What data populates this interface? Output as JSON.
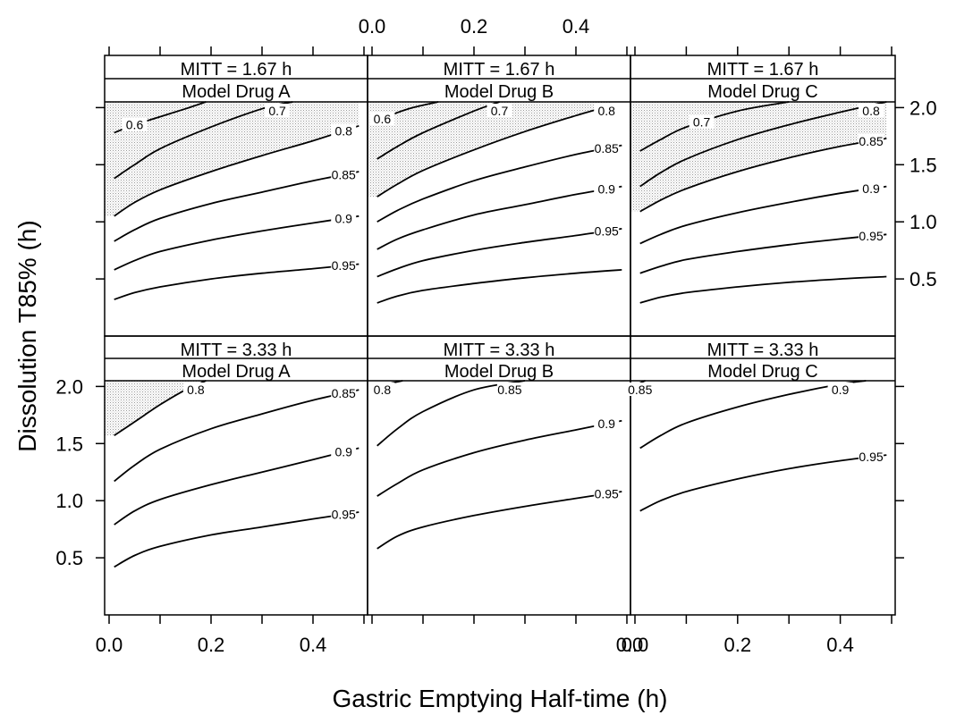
{
  "chart_data": {
    "type": "line",
    "subtype": "contour-trellis",
    "xlabel": "Gastric Emptying Half-time (h)",
    "ylabel": "Dissolution T85% (h)",
    "xlim": [
      0.0,
      0.5
    ],
    "ylim": [
      0.0,
      2.05
    ],
    "xticks": [
      "0.0",
      "0.2",
      "0.4"
    ],
    "yticks": [
      "0.5",
      "1.0",
      "1.5",
      "2.0"
    ],
    "shading": "stippled region where predicted fraction absorbed is below the highest contour shown in the top-left",
    "panels": [
      {
        "strip_top": "MITT = 1.67 h",
        "strip_bottom": "Model Drug A",
        "row": 0,
        "col": 0,
        "contours": [
          {
            "level": "0.6",
            "x": [
              0.01,
              0.05,
              0.1,
              0.15,
              0.19
            ],
            "y": [
              1.78,
              1.85,
              1.92,
              1.99,
              2.05
            ],
            "label_x": 0.05
          },
          {
            "level": "0.7",
            "x": [
              0.01,
              0.05,
              0.1,
              0.2,
              0.3,
              0.36
            ],
            "y": [
              1.38,
              1.5,
              1.64,
              1.83,
              1.99,
              2.05
            ],
            "label_x": 0.33
          },
          {
            "level": "0.8",
            "x": [
              0.01,
              0.05,
              0.1,
              0.2,
              0.3,
              0.4,
              0.49
            ],
            "y": [
              1.05,
              1.17,
              1.28,
              1.44,
              1.58,
              1.71,
              1.84
            ],
            "label_x": 0.46
          },
          {
            "level": "0.85",
            "x": [
              0.01,
              0.05,
              0.1,
              0.2,
              0.3,
              0.4,
              0.49
            ],
            "y": [
              0.83,
              0.93,
              1.03,
              1.16,
              1.26,
              1.36,
              1.44
            ],
            "label_x": 0.46
          },
          {
            "level": "0.9",
            "x": [
              0.01,
              0.05,
              0.1,
              0.2,
              0.3,
              0.4,
              0.49
            ],
            "y": [
              0.58,
              0.66,
              0.74,
              0.84,
              0.92,
              0.99,
              1.05
            ],
            "label_x": 0.46
          },
          {
            "level": "0.95",
            "x": [
              0.01,
              0.05,
              0.1,
              0.2,
              0.3,
              0.4,
              0.49
            ],
            "y": [
              0.32,
              0.38,
              0.43,
              0.5,
              0.55,
              0.59,
              0.63
            ],
            "label_x": 0.46
          }
        ]
      },
      {
        "strip_top": "MITT = 1.67 h",
        "strip_bottom": "Model Drug B",
        "row": 0,
        "col": 1,
        "contours": [
          {
            "level": "0.6",
            "x": [
              0.01,
              0.04,
              0.08,
              0.13
            ],
            "y": [
              1.88,
              1.94,
              2.0,
              2.05
            ],
            "label_x": 0.02
          },
          {
            "level": "0.7",
            "x": [
              0.01,
              0.05,
              0.1,
              0.2,
              0.25
            ],
            "y": [
              1.55,
              1.66,
              1.78,
              1.97,
              2.05
            ],
            "label_x": 0.25
          },
          {
            "level": "0.8",
            "x": [
              0.01,
              0.05,
              0.1,
              0.2,
              0.3,
              0.4,
              0.47
            ],
            "y": [
              1.22,
              1.33,
              1.45,
              1.63,
              1.79,
              1.93,
              2.02
            ],
            "label_x": 0.46
          },
          {
            "level": "0.85",
            "x": [
              0.01,
              0.05,
              0.1,
              0.2,
              0.3,
              0.4,
              0.49
            ],
            "y": [
              1.0,
              1.1,
              1.2,
              1.36,
              1.48,
              1.59,
              1.67
            ],
            "label_x": 0.46
          },
          {
            "level": "0.9",
            "x": [
              0.01,
              0.05,
              0.1,
              0.2,
              0.3,
              0.4,
              0.49
            ],
            "y": [
              0.76,
              0.85,
              0.93,
              1.06,
              1.15,
              1.24,
              1.31
            ],
            "label_x": 0.46
          },
          {
            "level": "0.95",
            "x": [
              0.01,
              0.05,
              0.1,
              0.2,
              0.3,
              0.4,
              0.49
            ],
            "y": [
              0.52,
              0.59,
              0.66,
              0.75,
              0.82,
              0.88,
              0.94
            ],
            "label_x": 0.46
          },
          {
            "level": "",
            "x": [
              0.01,
              0.05,
              0.1,
              0.2,
              0.3,
              0.4,
              0.49
            ],
            "y": [
              0.29,
              0.35,
              0.4,
              0.46,
              0.51,
              0.55,
              0.58
            ],
            "label_x": 0.46
          }
        ]
      },
      {
        "strip_top": "MITT = 1.67 h",
        "strip_bottom": "Model Drug C",
        "row": 0,
        "col": 2,
        "contours": [
          {
            "level": "0.7",
            "x": [
              0.01,
              0.05,
              0.1,
              0.2,
              0.3
            ],
            "y": [
              1.62,
              1.72,
              1.83,
              1.97,
              2.05
            ],
            "label_x": 0.13
          },
          {
            "level": "0.8",
            "x": [
              0.01,
              0.05,
              0.1,
              0.2,
              0.3,
              0.4,
              0.49
            ],
            "y": [
              1.31,
              1.43,
              1.55,
              1.72,
              1.85,
              1.96,
              2.05
            ],
            "label_x": 0.46
          },
          {
            "level": "0.85",
            "x": [
              0.01,
              0.05,
              0.1,
              0.2,
              0.3,
              0.4,
              0.49
            ],
            "y": [
              1.09,
              1.19,
              1.29,
              1.44,
              1.56,
              1.66,
              1.73
            ],
            "label_x": 0.46
          },
          {
            "level": "0.9",
            "x": [
              0.01,
              0.05,
              0.1,
              0.2,
              0.3,
              0.4,
              0.49
            ],
            "y": [
              0.81,
              0.89,
              0.97,
              1.08,
              1.17,
              1.25,
              1.31
            ],
            "label_x": 0.46
          },
          {
            "level": "0.95",
            "x": [
              0.01,
              0.05,
              0.1,
              0.2,
              0.3,
              0.4,
              0.49
            ],
            "y": [
              0.55,
              0.61,
              0.67,
              0.74,
              0.8,
              0.85,
              0.89
            ],
            "label_x": 0.46
          },
          {
            "level": "",
            "x": [
              0.01,
              0.05,
              0.1,
              0.2,
              0.3,
              0.4,
              0.49
            ],
            "y": [
              0.29,
              0.34,
              0.38,
              0.43,
              0.47,
              0.5,
              0.52
            ],
            "label_x": 0.46
          }
        ]
      },
      {
        "strip_top": "MITT = 3.33 h",
        "strip_bottom": "Model Drug A",
        "row": 1,
        "col": 0,
        "contours": [
          {
            "level": "0.8",
            "x": [
              0.01,
              0.05,
              0.1,
              0.15,
              0.19
            ],
            "y": [
              1.57,
              1.69,
              1.84,
              1.97,
              2.05
            ],
            "label_x": 0.17
          },
          {
            "level": "0.85",
            "x": [
              0.01,
              0.05,
              0.1,
              0.2,
              0.3,
              0.4,
              0.49
            ],
            "y": [
              1.17,
              1.31,
              1.45,
              1.63,
              1.76,
              1.88,
              1.97
            ],
            "label_x": 0.46
          },
          {
            "level": "0.9",
            "x": [
              0.01,
              0.05,
              0.1,
              0.2,
              0.3,
              0.4,
              0.49
            ],
            "y": [
              0.79,
              0.91,
              1.01,
              1.14,
              1.25,
              1.36,
              1.46
            ],
            "label_x": 0.46
          },
          {
            "level": "0.95",
            "x": [
              0.01,
              0.05,
              0.1,
              0.2,
              0.3,
              0.4,
              0.49
            ],
            "y": [
              0.42,
              0.52,
              0.6,
              0.7,
              0.77,
              0.84,
              0.9
            ],
            "label_x": 0.46
          }
        ]
      },
      {
        "strip_top": "MITT = 3.33 h",
        "strip_bottom": "Model Drug B",
        "row": 1,
        "col": 1,
        "contours": [
          {
            "level": "0.8",
            "x": [
              0.01,
              0.03,
              0.06
            ],
            "y": [
              1.98,
              2.02,
              2.05
            ],
            "label_x": 0.02
          },
          {
            "level": "0.85",
            "x": [
              0.01,
              0.05,
              0.1,
              0.2,
              0.3
            ],
            "y": [
              1.48,
              1.63,
              1.78,
              1.97,
              2.05
            ],
            "label_x": 0.27
          },
          {
            "level": "0.9",
            "x": [
              0.01,
              0.05,
              0.1,
              0.2,
              0.3,
              0.4,
              0.49
            ],
            "y": [
              1.04,
              1.15,
              1.27,
              1.42,
              1.53,
              1.62,
              1.7
            ],
            "label_x": 0.46
          },
          {
            "level": "0.95",
            "x": [
              0.01,
              0.05,
              0.1,
              0.2,
              0.3,
              0.4,
              0.49
            ],
            "y": [
              0.58,
              0.69,
              0.77,
              0.87,
              0.95,
              1.02,
              1.08
            ],
            "label_x": 0.46
          }
        ]
      },
      {
        "strip_top": "MITT = 3.33 h",
        "strip_bottom": "Model Drug C",
        "row": 1,
        "col": 2,
        "contours": [
          {
            "level": "0.85",
            "x": [
              0.005,
              0.02
            ],
            "y": [
              2.02,
              2.05
            ],
            "label_x": 0.01
          },
          {
            "level": "0.9",
            "x": [
              0.01,
              0.05,
              0.1,
              0.2,
              0.3,
              0.4,
              0.45
            ],
            "y": [
              1.46,
              1.57,
              1.68,
              1.82,
              1.93,
              2.02,
              2.05
            ],
            "label_x": 0.4
          },
          {
            "level": "0.95",
            "x": [
              0.01,
              0.05,
              0.1,
              0.2,
              0.3,
              0.4,
              0.49
            ],
            "y": [
              0.91,
              1.0,
              1.08,
              1.19,
              1.28,
              1.35,
              1.4
            ],
            "label_x": 0.46
          }
        ]
      }
    ]
  }
}
